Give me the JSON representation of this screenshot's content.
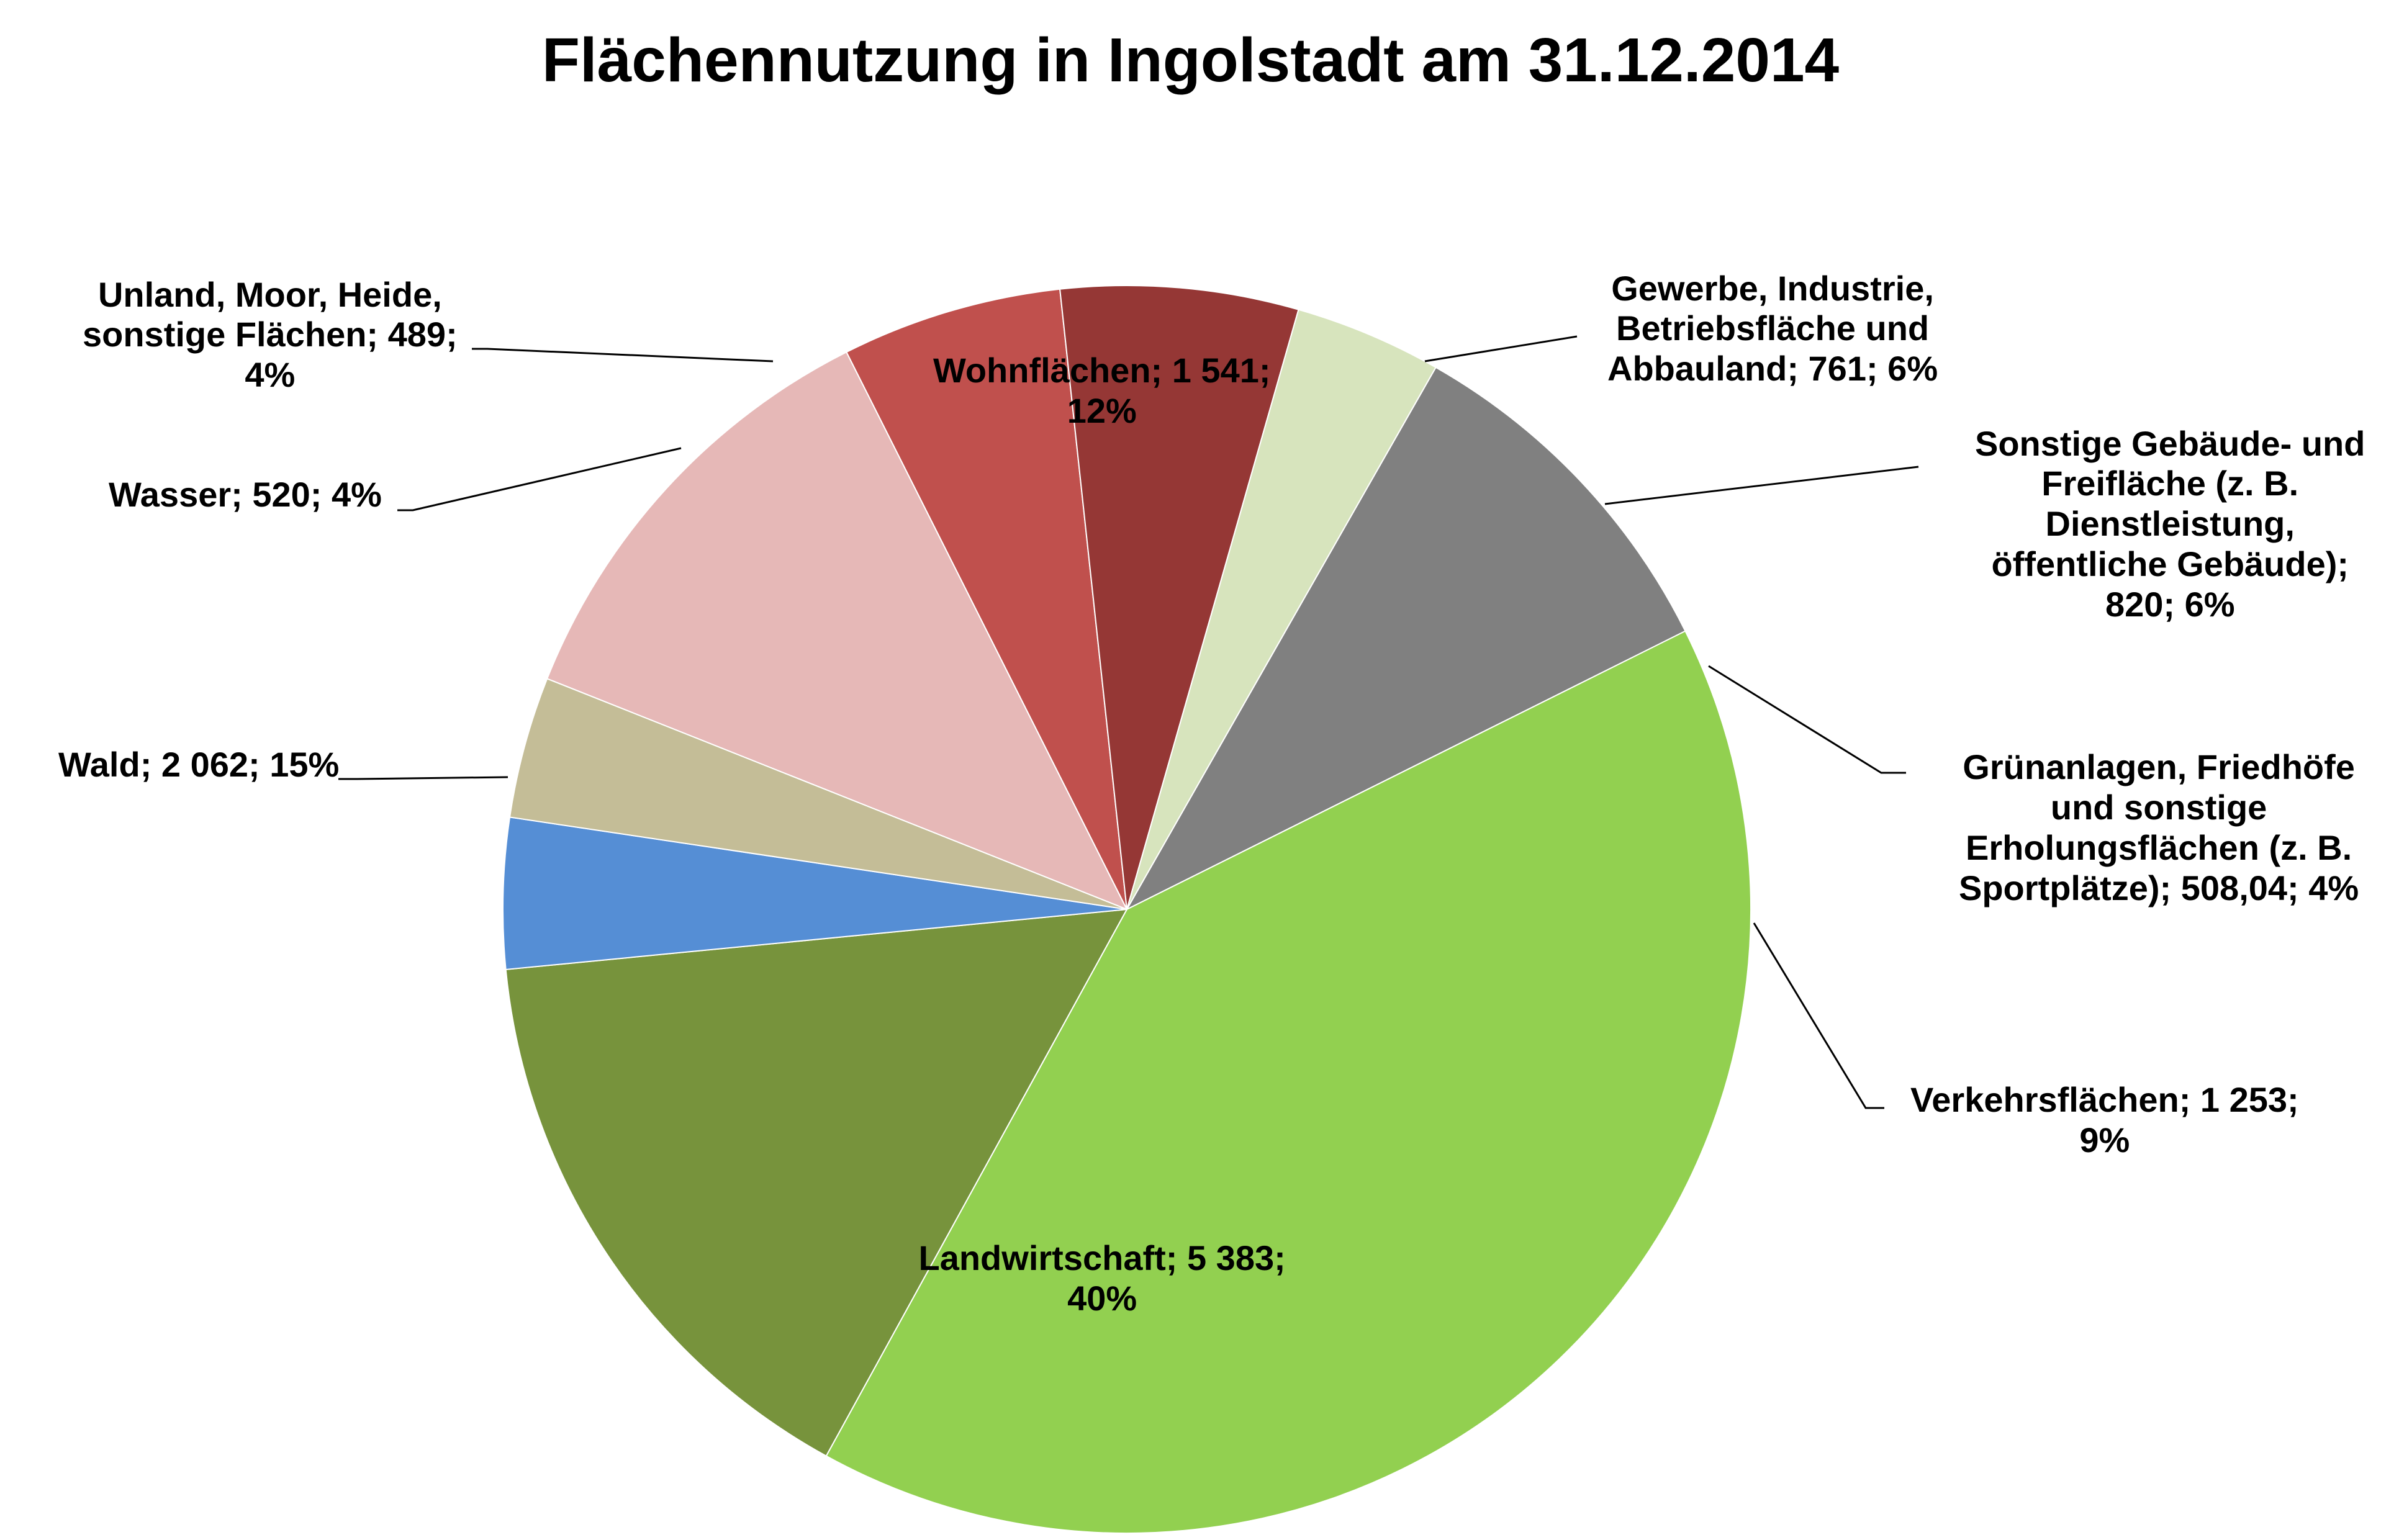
{
  "chart_data": {
    "type": "pie",
    "title": "Flächennutzung in Ingolstadt am 31.12.2014",
    "slices": [
      {
        "key": "wohnflaechen",
        "lines": [
          "Wohnflächen; 1 541;",
          "12%"
        ],
        "value": 1541,
        "percent": 12,
        "color": "#E6B8B7"
      },
      {
        "key": "gewerbe",
        "lines": [
          "Gewerbe, Industrie,",
          "Betriebsfläche und",
          "Abbauland; 761; 6%"
        ],
        "value": 761,
        "percent": 6,
        "color": "#C0504D"
      },
      {
        "key": "sonstige-gebaeude",
        "lines": [
          "Sonstige Gebäude- und",
          "Freifläche (z. B.",
          "Dienstleistung,",
          "öffentliche Gebäude);",
          "820; 6%"
        ],
        "value": 820,
        "percent": 6,
        "color": "#953735"
      },
      {
        "key": "gruenanlagen",
        "lines": [
          "Grünanlagen, Friedhöfe",
          "und sonstige",
          "Erholungsflächen (z. B.",
          "Sportplätze); 508,04; 4%"
        ],
        "value": 508.04,
        "percent": 4,
        "color": "#D7E4BD"
      },
      {
        "key": "verkehrsflaechen",
        "lines": [
          "Verkehrsflächen; 1 253;",
          "9%"
        ],
        "value": 1253,
        "percent": 9,
        "color": "#808080"
      },
      {
        "key": "landwirtschaft",
        "lines": [
          "Landwirtschaft; 5 383;",
          "40%"
        ],
        "value": 5383,
        "percent": 40,
        "color": "#92D050"
      },
      {
        "key": "wald",
        "lines": [
          "Wald; 2 062; 15%"
        ],
        "value": 2062,
        "percent": 15,
        "color": "#77933C"
      },
      {
        "key": "wasser",
        "lines": [
          "Wasser; 520; 4%"
        ],
        "value": 520,
        "percent": 4,
        "color": "#558ED5"
      },
      {
        "key": "unland",
        "lines": [
          "Unland, Moor, Heide,",
          "sonstige Flächen; 489;",
          "4%"
        ],
        "value": 489,
        "percent": 4,
        "color": "#C4BD97"
      }
    ]
  }
}
